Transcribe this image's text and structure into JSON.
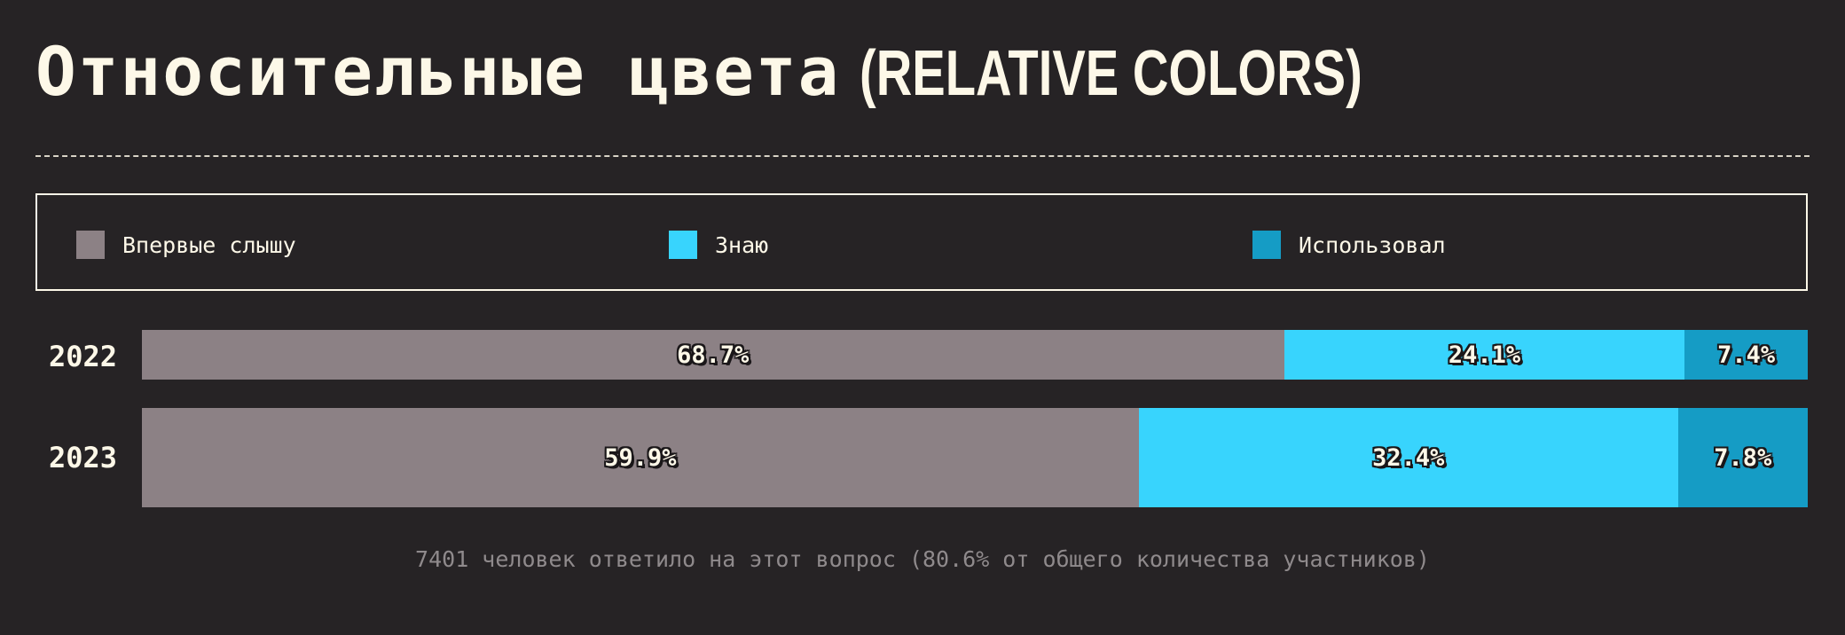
{
  "title": {
    "main": "Относительные цвета",
    "sub": "(RELATIVE COLORS)"
  },
  "colors": {
    "background": "#262325",
    "text": "#fdf8e8",
    "heard_first": "#8c8185",
    "know": "#38d4fd",
    "used": "#159cc5"
  },
  "chart_data": {
    "type": "bar",
    "orientation": "horizontal",
    "stacked": true,
    "categories": [
      "2022",
      "2023"
    ],
    "series": [
      {
        "name": "Впервые слышу",
        "color": "#8c8185",
        "values": [
          68.7,
          59.9
        ],
        "labels": [
          "68.7%",
          "59.9%"
        ]
      },
      {
        "name": "Знаю",
        "color": "#38d4fd",
        "values": [
          24.1,
          32.4
        ],
        "labels": [
          "24.1%",
          "32.4%"
        ]
      },
      {
        "name": "Использовал",
        "color": "#159cc5",
        "values": [
          7.4,
          7.8
        ],
        "labels": [
          "7.4%",
          "7.8%"
        ]
      }
    ],
    "xlim": [
      0,
      100
    ],
    "grid": false,
    "legend": "top"
  },
  "footnote": "7401 человек ответило на этот вопрос (80.6% от общего количества участников)"
}
